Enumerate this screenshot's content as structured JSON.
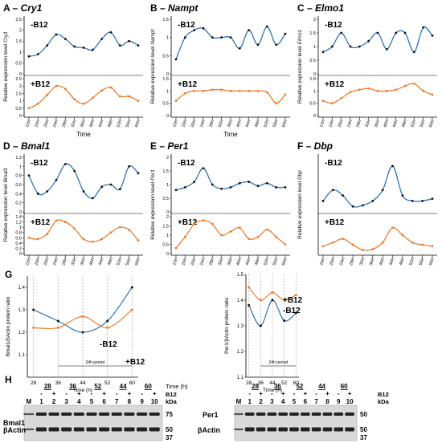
{
  "panels": [
    {
      "letter": "A",
      "gene": "Cry1",
      "ylabel": "Relative expression level",
      "xlabel": "Time",
      "ticks": [
        "12H",
        "16H",
        "20H",
        "24H",
        "28H",
        "32H",
        "36H",
        "40H",
        "44H",
        "48H",
        "52H",
        "56H",
        "60H"
      ],
      "series": [
        {
          "name": "-B12",
          "color": "#2e75b6",
          "range": [
            0,
            2.5
          ],
          "yticks": [
            0,
            0.5,
            1,
            1.5,
            2,
            2.5
          ],
          "values": [
            0.8,
            0.9,
            1.3,
            1.8,
            1.6,
            1.25,
            1.2,
            1.1,
            1.6,
            1.9,
            1.3,
            1.5,
            1.3
          ]
        },
        {
          "name": "+B12",
          "color": "#ed7d31",
          "range": [
            0,
            2.5
          ],
          "yticks": [
            0,
            0.5,
            1,
            1.5,
            2,
            2.5
          ],
          "values": [
            0.5,
            0.8,
            1.4,
            2.0,
            1.8,
            1.1,
            0.8,
            1.2,
            1.7,
            1.9,
            1.3,
            1.3,
            1.0
          ]
        }
      ]
    },
    {
      "letter": "B",
      "gene": "Nampt",
      "ylabel": "Relative expression level",
      "xlabel": "Time",
      "ticks": [
        "12H",
        "16H",
        "20H",
        "24H",
        "28H",
        "32H",
        "36H",
        "40H",
        "44H",
        "48H",
        "52H",
        "56H",
        "60H"
      ],
      "series": [
        {
          "name": "-B12",
          "color": "#2e75b6",
          "range": [
            0,
            1.5
          ],
          "yticks": [
            0,
            0.5,
            1,
            1.5
          ],
          "values": [
            0.4,
            1.0,
            1.2,
            1.25,
            1.0,
            1.0,
            1.0,
            0.7,
            1.2,
            0.8,
            1.3,
            0.8,
            1.1
          ]
        },
        {
          "name": "+B12",
          "color": "#ed7d31",
          "range": [
            0,
            1.5
          ],
          "yticks": [
            0,
            0.5,
            1,
            1.5
          ],
          "values": [
            0.6,
            0.9,
            1.0,
            1.0,
            1.05,
            1.05,
            1.0,
            1.0,
            1.0,
            1.0,
            0.95,
            0.5,
            0.85
          ]
        }
      ]
    },
    {
      "letter": "C",
      "gene": "Elmo1",
      "ylabel": "Relative expression level",
      "xlabel": "",
      "ticks": [
        "12H",
        "16H",
        "20H",
        "24H",
        "28H",
        "32H",
        "36H",
        "40H",
        "44H",
        "48H",
        "52H",
        "56H",
        "60H"
      ],
      "series": [
        {
          "name": "-B12",
          "color": "#2e75b6",
          "range": [
            0,
            2
          ],
          "yticks": [
            0,
            0.5,
            1,
            1.5,
            2
          ],
          "values": [
            0.8,
            1.0,
            1.5,
            1.0,
            1.0,
            1.2,
            1.5,
            0.9,
            1.5,
            1.5,
            0.8,
            1.7,
            1.4
          ]
        },
        {
          "name": "+B12",
          "color": "#ed7d31",
          "range": [
            0,
            1.5
          ],
          "yticks": [
            0,
            0.5,
            1,
            1.5
          ],
          "values": [
            0.6,
            0.5,
            0.7,
            0.95,
            1.05,
            1.1,
            1.0,
            1.0,
            1.05,
            1.2,
            1.3,
            1.0,
            0.85
          ]
        }
      ]
    },
    {
      "letter": "D",
      "gene": "Bmal1",
      "ylabel": "Relative expression level",
      "xlabel": "",
      "ticks": [
        "12H",
        "16H",
        "20H",
        "24H",
        "28H",
        "32H",
        "36H",
        "40H",
        "44H",
        "48H",
        "52H",
        "56H",
        "60H"
      ],
      "series": [
        {
          "name": "-B12",
          "color": "#2e75b6",
          "range": [
            0,
            1.2
          ],
          "yticks": [
            0,
            0.2,
            0.4,
            0.6,
            0.8,
            1,
            1.2
          ],
          "values": [
            0.8,
            0.4,
            0.45,
            0.7,
            1.05,
            0.9,
            0.45,
            0.3,
            0.55,
            0.6,
            0.5,
            1.0,
            0.85
          ]
        },
        {
          "name": "+B12",
          "color": "#ed7d31",
          "range": [
            0,
            1.4
          ],
          "yticks": [
            0,
            0.2,
            0.4,
            0.6,
            0.8,
            1,
            1.2,
            1.4
          ],
          "values": [
            0.6,
            0.55,
            0.75,
            1.25,
            1.2,
            0.95,
            0.55,
            0.45,
            0.55,
            0.8,
            1.0,
            0.9,
            0.5
          ]
        }
      ]
    },
    {
      "letter": "E",
      "gene": "Per1",
      "ylabel": "Relative expression level",
      "xlabel": "",
      "ticks": [
        "12H",
        "16H",
        "20H",
        "24H",
        "28H",
        "32H",
        "36H",
        "40H",
        "44H",
        "48H",
        "52H",
        "56H",
        "60H"
      ],
      "series": [
        {
          "name": "-B12",
          "color": "#2e75b6",
          "range": [
            0,
            2
          ],
          "yticks": [
            0,
            0.5,
            1,
            1.5,
            2
          ],
          "values": [
            0.8,
            0.9,
            1.1,
            1.6,
            1.0,
            0.85,
            0.9,
            1.05,
            1.1,
            0.95,
            1.05,
            0.9,
            0.9
          ]
        },
        {
          "name": "+B12",
          "color": "#ed7d31",
          "range": [
            0,
            2
          ],
          "yticks": [
            0,
            0.5,
            1,
            1.5,
            2
          ],
          "values": [
            0.3,
            0.9,
            1.6,
            1.8,
            1.6,
            1.0,
            1.2,
            1.4,
            0.8,
            0.9,
            1.3,
            0.9,
            0.5
          ]
        }
      ]
    },
    {
      "letter": "F",
      "gene": "Dbp",
      "ylabel": "Relative expression level",
      "xlabel": "",
      "ticks": [
        "16H",
        "20H",
        "24H",
        "28H",
        "32H",
        "36H",
        "40H",
        "44H",
        "48H",
        "52H",
        "56H",
        "60H"
      ],
      "series": [
        {
          "name": "-B12",
          "color": "#2e75b6",
          "range": [
            0,
            5
          ],
          "yticks": [],
          "values": [
            1.0,
            2.0,
            1.5,
            0.5,
            0.6,
            1.0,
            2.0,
            4.2,
            1.5,
            1.0,
            1.0,
            1.2
          ]
        },
        {
          "name": "+B12",
          "color": "#ed7d31",
          "range": [
            0,
            5
          ],
          "yticks": [],
          "values": [
            1.0,
            1.5,
            2.0,
            1.2,
            0.5,
            0.6,
            1.5,
            3.5,
            2.5,
            1.5,
            1.2,
            1.0
          ]
        }
      ]
    }
  ],
  "protein": {
    "letter": "G",
    "xticks": [
      28,
      36,
      44,
      52,
      60
    ],
    "xlabel": "Time (h)",
    "period": "24h period",
    "charts": [
      {
        "ylabel": "Bmal1/βActin  protein ratio",
        "ylim": [
          1.0,
          1.45
        ],
        "yticks": [
          1.1,
          1.2,
          1.3,
          1.4
        ],
        "neg": {
          "name": "-B12",
          "values": [
            1.3,
            1.25,
            1.2,
            1.25,
            1.4
          ]
        },
        "pos": {
          "name": "+B12",
          "values": [
            1.22,
            1.22,
            1.27,
            1.22,
            1.3
          ]
        }
      },
      {
        "ylabel": "Per1/βActin  protein ratio",
        "ylim": [
          1.1,
          1.5
        ],
        "yticks": [
          1.1,
          1.2,
          1.3,
          1.4,
          1.5
        ],
        "neg": {
          "name": "-B12",
          "values": [
            1.38,
            1.3,
            1.4,
            1.32,
            1.35
          ]
        },
        "pos": {
          "name": "+B12",
          "values": [
            1.45,
            1.4,
            1.43,
            1.4,
            1.42
          ]
        }
      }
    ]
  },
  "blot": {
    "letter": "H",
    "time_label": "Time (h)",
    "b12_label": "B12",
    "kda": "kDa",
    "left": {
      "times": [
        "28",
        "36",
        "52",
        "44",
        "60"
      ],
      "signs": [
        "-",
        "+",
        "-",
        "+",
        "-",
        "+",
        "-",
        "+",
        "-",
        "+"
      ],
      "lanes": [
        "M",
        "1",
        "2",
        "3",
        "4",
        "5",
        "6",
        "7",
        "8",
        "9",
        "10"
      ],
      "rows": [
        {
          "label": "Bmal1",
          "marker": "75"
        },
        {
          "label": "βActin",
          "marker": "50"
        }
      ],
      "extra_marker": "37"
    },
    "right": {
      "times": [
        "28",
        "36",
        "52",
        "44",
        "60"
      ],
      "signs": [
        "-",
        "+",
        "-",
        "+",
        "-",
        "+",
        "-",
        "+",
        "-",
        "+"
      ],
      "lanes": [
        "M",
        "1",
        "2",
        "3",
        "4",
        "5",
        "6",
        "7",
        "8",
        "9",
        "10"
      ],
      "rows": [
        {
          "label": "Per1",
          "marker": "50"
        },
        {
          "label": "βActin",
          "marker": "50"
        }
      ],
      "extra_marker": "37"
    }
  }
}
